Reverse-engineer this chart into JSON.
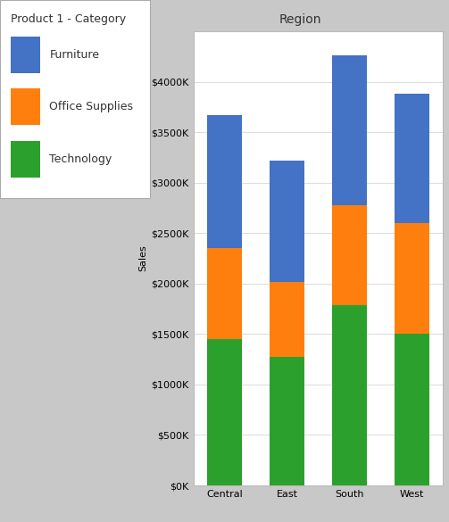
{
  "title": "Region",
  "xlabel": "",
  "ylabel": "Sales",
  "categories": [
    "Central",
    "East",
    "South",
    "West"
  ],
  "series": {
    "Technology": [
      1450000,
      1270000,
      1790000,
      1500000
    ],
    "Office Supplies": [
      900000,
      750000,
      990000,
      1100000
    ],
    "Furniture": [
      1320000,
      1200000,
      1480000,
      1280000
    ]
  },
  "colors": {
    "Technology": "#2ca02c",
    "Office Supplies": "#ff7f0e",
    "Furniture": "#4472c4"
  },
  "legend_title": "Product 1 - Category",
  "ylim": [
    0,
    4500000
  ],
  "yticks": [
    0,
    500000,
    1000000,
    1500000,
    2000000,
    2500000,
    3000000,
    3500000,
    4000000
  ],
  "bar_width": 0.55,
  "background_color": "#c8c8c8",
  "plot_bg_color": "#ffffff",
  "legend_bg_color": "#ffffff",
  "title_fontsize": 10,
  "axis_fontsize": 8,
  "tick_fontsize": 8,
  "legend_fontsize": 9,
  "legend_title_fontsize": 9
}
